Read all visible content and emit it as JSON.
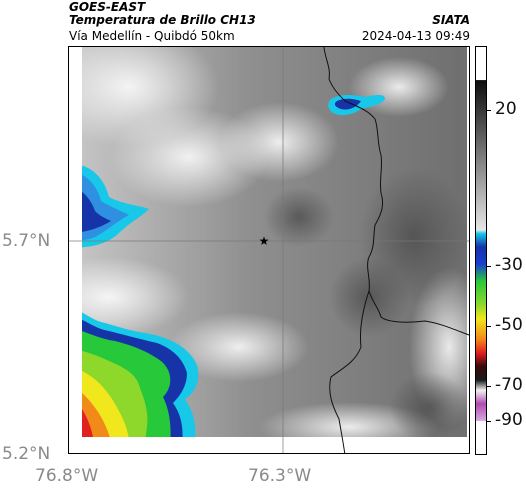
{
  "header": {
    "satellite": "GOES-EAST",
    "product": "Temperatura de Brillo CH13",
    "region": "Vía Medellín - Quibdó 50km",
    "agency": "SIATA",
    "timestamp": "2024-04-13 09:49"
  },
  "axes": {
    "lat_labels": [
      "5.7°N",
      "5.2°N"
    ],
    "lon_labels": [
      "76.8°W",
      "76.3°W"
    ]
  },
  "colorbar": {
    "ticks": [
      "20",
      "-30",
      "-50",
      "-70",
      "-90"
    ]
  },
  "marker": {
    "symbol": "★",
    "name": "reference point"
  },
  "colors": {
    "cold_blue": "#1633a8",
    "cyan": "#18c8e8",
    "green": "#27c93a",
    "yellow": "#f0e81c",
    "orange": "#f28a1a",
    "red": "#e22020",
    "gray_bg": "#8c8c8c",
    "coast_line": "#000000"
  }
}
